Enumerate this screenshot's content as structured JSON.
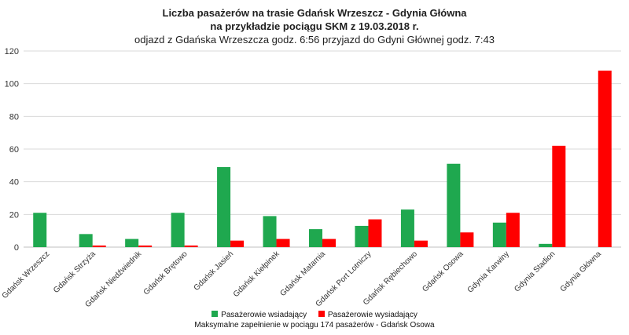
{
  "chart_data": {
    "type": "bar",
    "title": "Liczba pasażerów na trasie Gdańsk Wrzeszcz - Gdynia Główna",
    "title_line2": "na przykładzie pociągu SKM z 19.03.2018 r.",
    "subtitle": "odjazd z Gdańska Wrzeszcza godz. 6:56 przyjazd do Gdyni Głównej godz. 7:43",
    "categories": [
      "Gdańsk Wrzeszcz",
      "Gdańsk Strzyża",
      "Gdańsk Niedźwiednik",
      "Gdańsk Brętowo",
      "Gdańsk Jasień",
      "Gdańsk Kiełpinek",
      "Gdańsk Matarnia",
      "Gdańsk Port Lotniczy",
      "Gdańsk Rębiechowo",
      "Gdańsk Osowa",
      "Gdynia Karwiny",
      "Gdynia Stadion",
      "Gdynia Główna"
    ],
    "series": [
      {
        "name": "Pasażerowie wsiadający",
        "color": "#1fa84f",
        "values": [
          21,
          8,
          5,
          21,
          49,
          19,
          11,
          13,
          23,
          51,
          15,
          2,
          0
        ]
      },
      {
        "name": "Pasażerowie wysiadający",
        "color": "#ff0000",
        "values": [
          0,
          1,
          1,
          1,
          4,
          5,
          5,
          17,
          4,
          9,
          21,
          62,
          108
        ]
      }
    ],
    "ylim": [
      0,
      120
    ],
    "yticks": [
      0,
      20,
      40,
      60,
      80,
      100,
      120
    ],
    "grid": true,
    "legend_position": "bottom",
    "note": "Maksymalne zapełnienie w pociągu 174 pasażerów - Gdańsk Osowa"
  }
}
